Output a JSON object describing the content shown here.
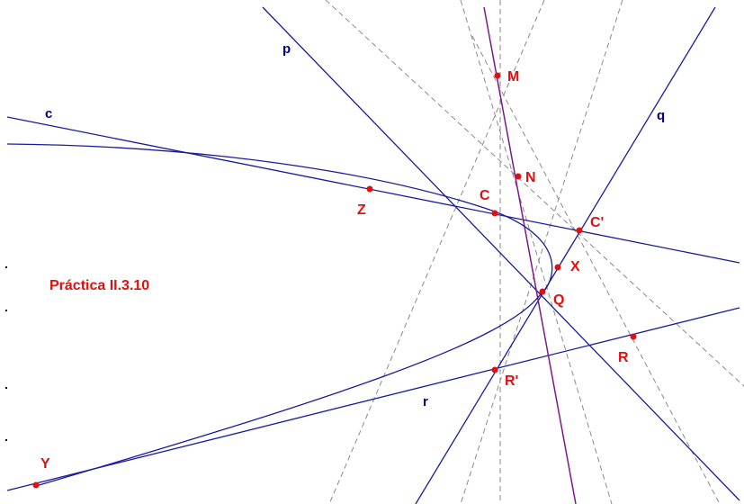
{
  "title": "Práctica II.3.10",
  "line_labels": {
    "p": "p",
    "q": "q",
    "c": "c",
    "r": "r"
  },
  "point_labels": {
    "M": "M",
    "N": "N",
    "C": "C",
    "C_prime": "C'",
    "Z": "Z",
    "X": "X",
    "Q": "Q",
    "R": "R",
    "R_prime": "R'",
    "Y": "Y"
  },
  "colors": {
    "lines": "#1a1aa0",
    "labels_lines": "#000080",
    "points": "#e01010",
    "construction": "#8a8a8a",
    "polar_line": "#7a1a8a"
  }
}
